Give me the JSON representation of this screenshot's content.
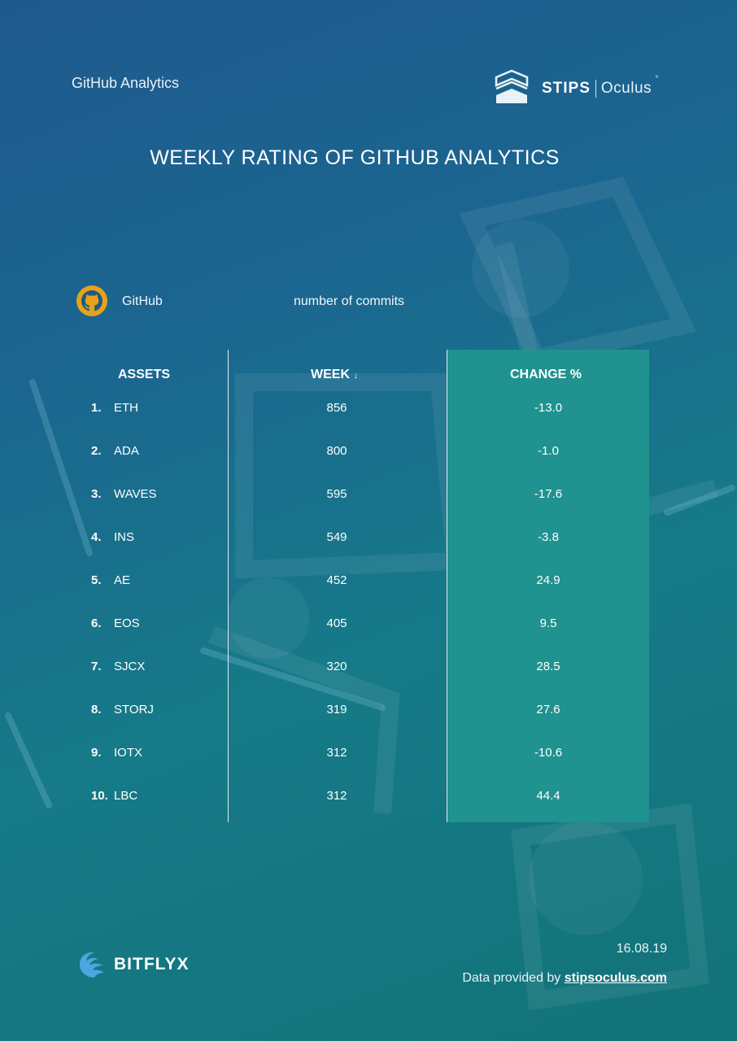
{
  "header": {
    "left_label": "GitHub Analytics",
    "brand": {
      "name": "STIPS",
      "product": "Oculus",
      "icon": "stips-logo-icon"
    }
  },
  "title": "WEEKLY RATING OF GITHUB ANALYTICS",
  "source": {
    "label": "GitHub",
    "icon": "github-icon",
    "metric": "number of commits"
  },
  "table": {
    "headers": {
      "assets": "ASSETS",
      "week": "WEEK",
      "week_sort_icon": "↓",
      "change": "CHANGE %"
    },
    "rows": [
      {
        "rank": "1.",
        "asset": "ETH",
        "week": "856",
        "change": "-13.0"
      },
      {
        "rank": "2.",
        "asset": "ADA",
        "week": "800",
        "change": "-1.0"
      },
      {
        "rank": "3.",
        "asset": "WAVES",
        "week": "595",
        "change": "-17.6"
      },
      {
        "rank": "4.",
        "asset": "INS",
        "week": "549",
        "change": "-3.8"
      },
      {
        "rank": "5.",
        "asset": "AE",
        "week": "452",
        "change": "24.9"
      },
      {
        "rank": "6.",
        "asset": "EOS",
        "week": "405",
        "change": "9.5"
      },
      {
        "rank": "7.",
        "asset": "SJCX",
        "week": "320",
        "change": "28.5"
      },
      {
        "rank": "8.",
        "asset": "STORJ",
        "week": "319",
        "change": "27.6"
      },
      {
        "rank": "9.",
        "asset": "IOTX",
        "week": "312",
        "change": "-10.6"
      },
      {
        "rank": "10.",
        "asset": "LBC",
        "week": "312",
        "change": "44.4"
      }
    ]
  },
  "footer": {
    "brand": "BITFLYX",
    "brand_icon": "bitflyx-logo-icon",
    "date": "16.08.19",
    "provided_prefix": "Data provided by ",
    "provided_link": "stipsoculus.com"
  },
  "colors": {
    "background_start": "#1f5a8e",
    "background_end": "#127378",
    "change_panel": "#20928f",
    "github_icon": "#e8a21a",
    "bitflyx_icon": "#4aa8de"
  }
}
